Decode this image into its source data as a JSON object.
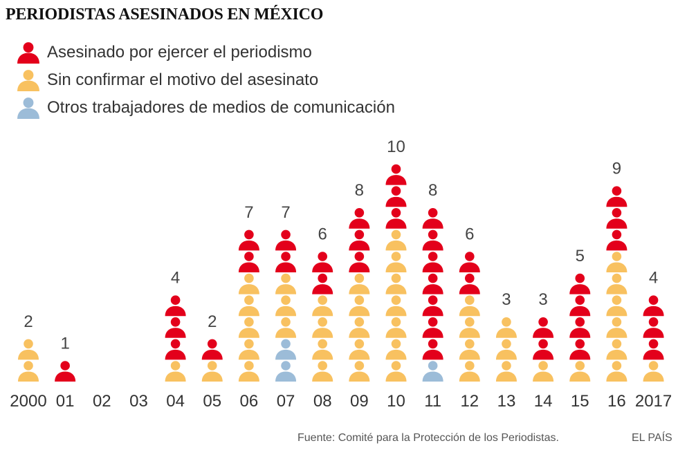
{
  "colors": {
    "journalism": "#e3001b",
    "unconfirmed": "#f8c160",
    "media_workers": "#9cbcd8"
  },
  "chart_data": {
    "type": "bar",
    "title": "PERIODISTAS ASESINADOS EN MÉXICO",
    "categories": [
      "2000",
      "01",
      "02",
      "03",
      "04",
      "05",
      "06",
      "07",
      "08",
      "09",
      "10",
      "11",
      "12",
      "13",
      "14",
      "15",
      "16",
      "2017"
    ],
    "series": [
      {
        "name": "Otros trabajadores de medios de comunicación",
        "key": "media_workers",
        "values": [
          0,
          0,
          0,
          0,
          0,
          0,
          0,
          2,
          0,
          0,
          0,
          1,
          0,
          0,
          0,
          0,
          0,
          0
        ]
      },
      {
        "name": "Sin  confirmar el motivo del asesinato",
        "key": "unconfirmed",
        "values": [
          2,
          0,
          0,
          0,
          1,
          1,
          5,
          3,
          4,
          5,
          7,
          0,
          4,
          3,
          1,
          1,
          6,
          1
        ]
      },
      {
        "name": "Asesinado por ejercer el periodismo",
        "key": "journalism",
        "values": [
          0,
          1,
          0,
          0,
          3,
          1,
          2,
          2,
          2,
          3,
          3,
          7,
          2,
          0,
          2,
          4,
          3,
          3
        ]
      }
    ],
    "totals": [
      "2",
      "1",
      "",
      "",
      "4",
      "2",
      "7",
      "7",
      "6",
      "8",
      "10",
      "8",
      "6",
      "3",
      "3",
      "5",
      "9",
      "4"
    ],
    "legend": [
      {
        "key": "journalism",
        "label": "Asesinado por ejercer el periodismo"
      },
      {
        "key": "unconfirmed",
        "label": "Sin  confirmar el motivo del asesinato"
      },
      {
        "key": "media_workers",
        "label": "Otros trabajadores de medios de comunicación"
      }
    ],
    "xlabel": "",
    "ylabel": "",
    "unit": "1 icon = 1 person"
  },
  "footer": {
    "source": "Fuente: Comité para la Protección de los Periodistas.",
    "brand": "EL PAÍS"
  }
}
